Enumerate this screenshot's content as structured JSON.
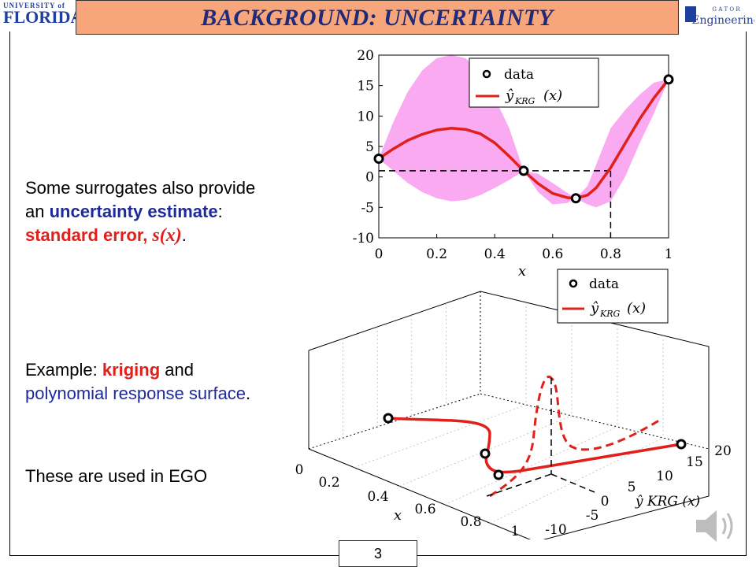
{
  "slide": {
    "title": "BACKGROUND: UNCERTAINTY",
    "page_number": "3",
    "logo_left": {
      "top": "UNIVERSITY of",
      "bottom": "FLORIDA"
    },
    "logo_right": {
      "top": "G A T O R",
      "bottom": "Engineering"
    }
  },
  "text": {
    "p1_a": "Some surrogates also provide an ",
    "p1_uncertainty": "uncertainty",
    "p1_estimate": "estimate",
    "p1_colon": ": ",
    "p1_standard": "standard",
    "p1_error": "error, ",
    "p1_sx": "s(x)",
    "p1_period": ".",
    "p2_a": "Example: ",
    "p2_kriging": "kriging",
    "p2_and": " and ",
    "p2_poly": "polynomial response surface",
    "p2_period": ".",
    "p3": "These are used in EGO"
  },
  "colors": {
    "curve": "#e0201a",
    "band": "#f9aaf0",
    "accent_blue": "#1f2a9a",
    "title_bg": "#f7a57a"
  },
  "chart_data": [
    {
      "type": "line",
      "title": "",
      "xlabel": "x",
      "ylabel": "",
      "xlim": [
        0,
        1
      ],
      "ylim": [
        -10,
        20
      ],
      "xticks": [
        "0",
        "0.2",
        "0.4",
        "0.6",
        "0.8",
        "1"
      ],
      "yticks": [
        "20",
        "15",
        "10",
        "5",
        "0",
        "-5",
        "-10"
      ],
      "legend": {
        "position": "top-right",
        "entries": [
          "data",
          "ŷ",
          "KRG",
          "(x)"
        ]
      },
      "data_points": {
        "x": [
          0,
          0.5,
          0.68,
          1
        ],
        "y": [
          3,
          1,
          -3.5,
          16
        ]
      },
      "curve": {
        "x": [
          0,
          0.05,
          0.1,
          0.15,
          0.2,
          0.25,
          0.3,
          0.35,
          0.4,
          0.45,
          0.5,
          0.55,
          0.6,
          0.65,
          0.68,
          0.72,
          0.75,
          0.8,
          0.85,
          0.9,
          0.95,
          1
        ],
        "y": [
          3,
          4.6,
          6,
          7,
          7.7,
          8,
          7.8,
          7.1,
          5.6,
          3.4,
          1,
          -1.1,
          -2.7,
          -3.4,
          -3.5,
          -3,
          -1.8,
          1.5,
          5.5,
          9.5,
          13,
          16
        ]
      },
      "band_upper": [
        3,
        9,
        14,
        17.5,
        19.5,
        20,
        19.5,
        17,
        13,
        8,
        1,
        0.5,
        -1,
        -2.6,
        -3.5,
        -1.5,
        2,
        8,
        11,
        13.5,
        15.5,
        16
      ],
      "band_lower": [
        3,
        1,
        -1,
        -2.5,
        -3.5,
        -4,
        -3.8,
        -3,
        -1.8,
        -0.5,
        1,
        -2.5,
        -4.5,
        -4.3,
        -3.5,
        -4.5,
        -5,
        -4,
        0,
        5.5,
        10.5,
        16
      ],
      "annotation": {
        "x": 0.8,
        "y": 1
      }
    },
    {
      "type": "line",
      "title": "",
      "xlabel": "x",
      "ylabel": "ŷ KRG (x)",
      "x_ticks": [
        "0",
        "0.2",
        "0.4",
        "0.6",
        "0.8",
        "1"
      ],
      "y_ticks": [
        "-10",
        "-5",
        "0",
        "5",
        "10",
        "15",
        "20"
      ],
      "legend": {
        "position": "top-right",
        "entries": [
          "data",
          "ŷ",
          "KRG",
          "(x)"
        ]
      }
    }
  ]
}
